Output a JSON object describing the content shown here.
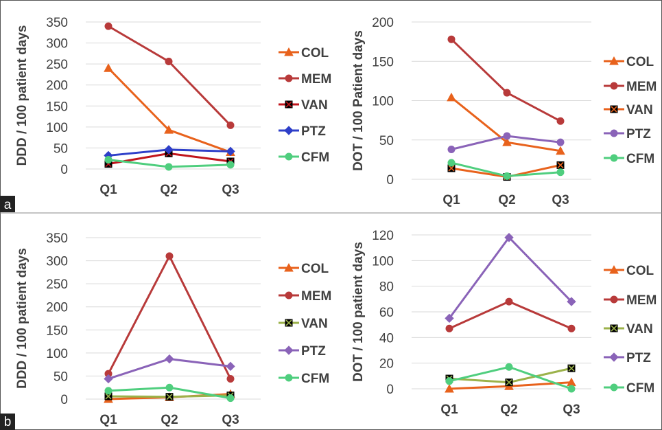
{
  "panel_labels": [
    "a",
    "b"
  ],
  "colors": {
    "COL": "#e8621c",
    "MEM": "#b83a3a",
    "MEM_dark": "#b0181c",
    "VAN_a": "#c0141b",
    "VAN_b": "#9bb24a",
    "PTZ_a1": "#2e3fc9",
    "PTZ": "#8a63b8",
    "CFM": "#4fce7e"
  },
  "chart_data": [
    {
      "type": "line",
      "panel": "a",
      "ylabel": "DDD / 100 patient days",
      "categories": [
        "Q1",
        "Q2",
        "Q3"
      ],
      "ylim": [
        0,
        350
      ],
      "yticks": [
        0,
        50,
        100,
        150,
        200,
        250,
        300,
        350
      ],
      "grid": true,
      "legend": "right",
      "series": [
        {
          "name": "COL",
          "values": [
            240,
            93,
            40
          ],
          "marker": "triangle"
        },
        {
          "name": "MEM",
          "values": [
            340,
            256,
            104
          ],
          "marker": "circle"
        },
        {
          "name": "VAN",
          "values": [
            12,
            37,
            18
          ],
          "marker": "square-x"
        },
        {
          "name": "PTZ",
          "values": [
            32,
            46,
            42
          ],
          "marker": "diamond"
        },
        {
          "name": "CFM",
          "values": [
            22,
            5,
            10
          ],
          "marker": "circle"
        }
      ]
    },
    {
      "type": "line",
      "panel": "a",
      "ylabel": "DOT / 100 Patient days",
      "categories": [
        "Q1",
        "Q2",
        "Q3"
      ],
      "ylim": [
        0,
        200
      ],
      "yticks": [
        0,
        50,
        100,
        150,
        200
      ],
      "grid": true,
      "legend": "right",
      "series": [
        {
          "name": "COL",
          "values": [
            104,
            47,
            36
          ],
          "marker": "triangle"
        },
        {
          "name": "MEM",
          "values": [
            178,
            110,
            74
          ],
          "marker": "circle"
        },
        {
          "name": "VAN",
          "values": [
            14,
            3,
            18
          ],
          "marker": "square-x"
        },
        {
          "name": "PTZ",
          "values": [
            38,
            55,
            47
          ],
          "marker": "circle"
        },
        {
          "name": "CFM",
          "values": [
            21,
            4,
            9
          ],
          "marker": "circle"
        }
      ]
    },
    {
      "type": "line",
      "panel": "b",
      "ylabel": "DDD / 100 patient days",
      "categories": [
        "Q1",
        "Q2",
        "Q3"
      ],
      "ylim": [
        0,
        350
      ],
      "yticks": [
        0,
        50,
        100,
        150,
        200,
        250,
        300,
        350
      ],
      "grid": true,
      "legend": "right",
      "series": [
        {
          "name": "COL",
          "values": [
            0,
            4,
            11
          ],
          "marker": "triangle"
        },
        {
          "name": "MEM",
          "values": [
            55,
            310,
            44
          ],
          "marker": "circle"
        },
        {
          "name": "VAN",
          "values": [
            6,
            5,
            8
          ],
          "marker": "square-x"
        },
        {
          "name": "PTZ",
          "values": [
            44,
            87,
            71
          ],
          "marker": "diamond"
        },
        {
          "name": "CFM",
          "values": [
            18,
            25,
            2
          ],
          "marker": "circle"
        }
      ]
    },
    {
      "type": "line",
      "panel": "b",
      "ylabel": "DOT / 100 patient days",
      "categories": [
        "Q1",
        "Q2",
        "Q3"
      ],
      "ylim": [
        0,
        120
      ],
      "yticks": [
        0,
        20,
        40,
        60,
        80,
        100,
        120
      ],
      "grid": true,
      "legend": "right",
      "series": [
        {
          "name": "COL",
          "values": [
            0,
            2,
            5
          ],
          "marker": "triangle"
        },
        {
          "name": "MEM",
          "values": [
            47,
            68,
            47
          ],
          "marker": "circle"
        },
        {
          "name": "VAN",
          "values": [
            8,
            5,
            16
          ],
          "marker": "square-x"
        },
        {
          "name": "PTZ",
          "values": [
            55,
            118,
            68
          ],
          "marker": "diamond"
        },
        {
          "name": "CFM",
          "values": [
            6,
            17,
            0
          ],
          "marker": "circle"
        }
      ]
    }
  ]
}
